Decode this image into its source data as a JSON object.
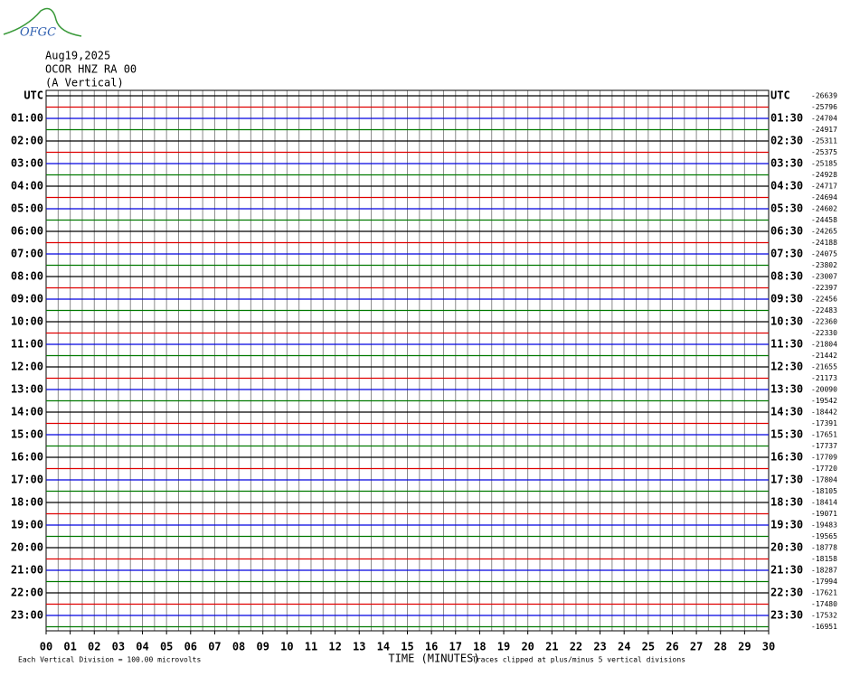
{
  "chart_data": {
    "type": "helicorder",
    "logo": "OFGC",
    "date": "Aug19,2025",
    "station": "OCOR HNZ RA 00",
    "component": "(A Vertical)",
    "xlabel": "TIME (MINUTES)",
    "note_left": "Each Vertical Division =  100.00 microvolts",
    "note_right": "Traces clipped at plus/minus 5 vertical divisions",
    "xlim": [
      0,
      30
    ],
    "xticks": [
      {
        "value": 0,
        "label": "00"
      },
      {
        "value": 1,
        "label": "01"
      },
      {
        "value": 2,
        "label": "02"
      },
      {
        "value": 3,
        "label": "03"
      },
      {
        "value": 4,
        "label": "04"
      },
      {
        "value": 5,
        "label": "05"
      },
      {
        "value": 6,
        "label": "06"
      },
      {
        "value": 7,
        "label": "07"
      },
      {
        "value": 8,
        "label": "08"
      },
      {
        "value": 9,
        "label": "09"
      },
      10,
      11,
      12,
      13,
      14,
      15,
      16,
      17,
      18,
      19,
      20,
      21,
      22,
      23,
      24,
      25,
      26,
      27,
      28,
      29,
      30
    ],
    "left_labels": [
      "UTC",
      "01:00",
      "02:00",
      "03:00",
      "04:00",
      "05:00",
      "06:00",
      "07:00",
      "08:00",
      "09:00",
      "10:00",
      "11:00",
      "12:00",
      "13:00",
      "14:00",
      "15:00",
      "16:00",
      "17:00",
      "18:00",
      "19:00",
      "20:00",
      "21:00",
      "22:00",
      "23:00"
    ],
    "right_labels": [
      "UTC",
      "01:30",
      "02:30",
      "03:30",
      "04:30",
      "05:30",
      "06:30",
      "07:30",
      "08:30",
      "09:30",
      "10:30",
      "11:30",
      "12:30",
      "13:30",
      "14:30",
      "15:30",
      "16:30",
      "17:30",
      "18:30",
      "19:30",
      "20:30",
      "21:30",
      "22:30",
      "23:30"
    ],
    "trace_colors": [
      "#000000",
      "#e00000",
      "#0000e0",
      "#007a00"
    ],
    "grid": true,
    "offsets": [
      -26639,
      -25796,
      -24704,
      -24917,
      -25311,
      -25375,
      -25185,
      -24928,
      -24717,
      -24694,
      -24602,
      -24458,
      -24265,
      -24188,
      -24075,
      -23802,
      -23007,
      -22397,
      -22456,
      -22483,
      -22360,
      -22330,
      -21804,
      -21442,
      -21655,
      -21173,
      -20090,
      -19542,
      -18442,
      -17391,
      -17651,
      -17737,
      -17709,
      -17720,
      -17804,
      -18105,
      -18414,
      -19071,
      -19483,
      -19565,
      -18778,
      -18158,
      -18287,
      -17994,
      -17621,
      -17480,
      -17532,
      -16951
    ]
  }
}
